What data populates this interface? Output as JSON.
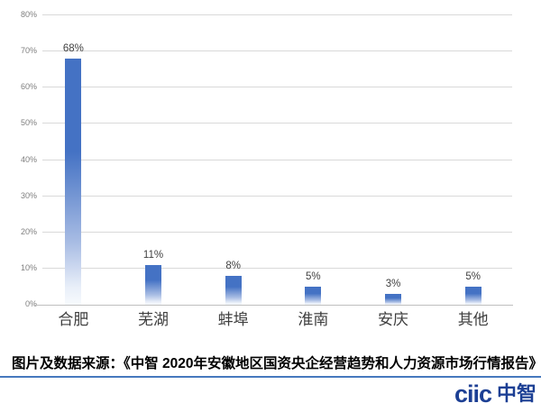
{
  "chart_data": {
    "type": "bar",
    "categories": [
      "合肥",
      "芜湖",
      "蚌埠",
      "淮南",
      "安庆",
      "其他"
    ],
    "values": [
      68,
      11,
      8,
      5,
      3,
      5
    ],
    "value_labels": [
      "68%",
      "11%",
      "8%",
      "5%",
      "3%",
      "5%"
    ],
    "title": "",
    "xlabel": "",
    "ylabel": "",
    "ylim": [
      0,
      80
    ],
    "ytick_labels": [
      "0%",
      "10%",
      "20%",
      "30%",
      "40%",
      "50%",
      "60%",
      "70%",
      "80%"
    ],
    "grid": true,
    "legend": false,
    "bar_color_top": "#4472c4",
    "bar_color_bottom": "#f7fafd",
    "gridline_color": "#d9d9d9",
    "axis_line_color": "#bfbfbf",
    "tick_label_color": "#7f7f7f",
    "value_label_color": "#404040",
    "category_label_color": "#3f3f3f"
  },
  "source_line": {
    "text": "图片及数据来源：《中智 2020年安徽地区国资央企经营趋势和人力资源市场行情报告》"
  },
  "footer": {
    "divider_color": "#4678be",
    "logo_text_latin": "ciic",
    "logo_text_cn": "中智",
    "logo_color": "#1c3f94"
  }
}
